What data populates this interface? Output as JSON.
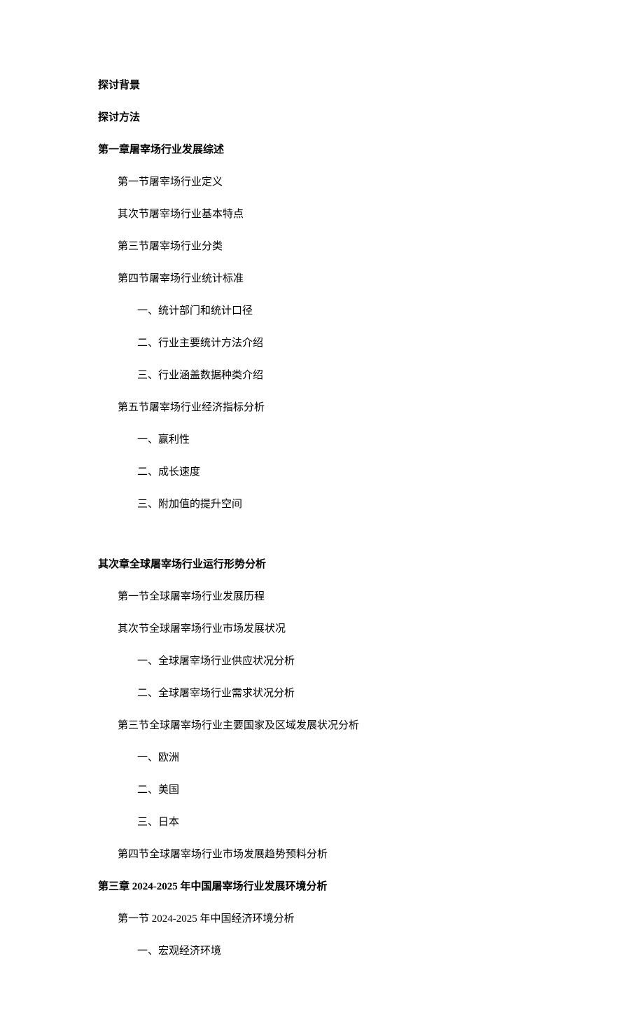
{
  "intro": {
    "bg": "探讨背景",
    "method": "探讨方法"
  },
  "ch1": {
    "title": "第一章屠宰场行业发展综述",
    "s1": "第一节屠宰场行业定义",
    "s2": "其次节屠宰场行业基本特点",
    "s3": "第三节屠宰场行业分类",
    "s4": "第四节屠宰场行业统计标准",
    "s4_1": "一、统计部门和统计口径",
    "s4_2": "二、行业主要统计方法介绍",
    "s4_3": "三、行业涵盖数据种类介绍",
    "s5": "第五节屠宰场行业经济指标分析",
    "s5_1": "一、赢利性",
    "s5_2": "二、成长速度",
    "s5_3": "三、附加值的提升空间"
  },
  "ch2": {
    "title": "其次章全球屠宰场行业运行形势分析",
    "s1": "第一节全球屠宰场行业发展历程",
    "s2": "其次节全球屠宰场行业市场发展状况",
    "s2_1": "一、全球屠宰场行业供应状况分析",
    "s2_2": "二、全球屠宰场行业需求状况分析",
    "s3": "第三节全球屠宰场行业主要国家及区域发展状况分析",
    "s3_1": "一、欧洲",
    "s3_2": "二、美国",
    "s3_3": "三、日本",
    "s4": "第四节全球屠宰场行业市场发展趋势预料分析"
  },
  "ch3": {
    "title": "第三章 2024-2025 年中国屠宰场行业发展环境分析",
    "s1": "第一节 2024-2025 年中国经济环境分析",
    "s1_1": "一、宏观经济环境"
  }
}
